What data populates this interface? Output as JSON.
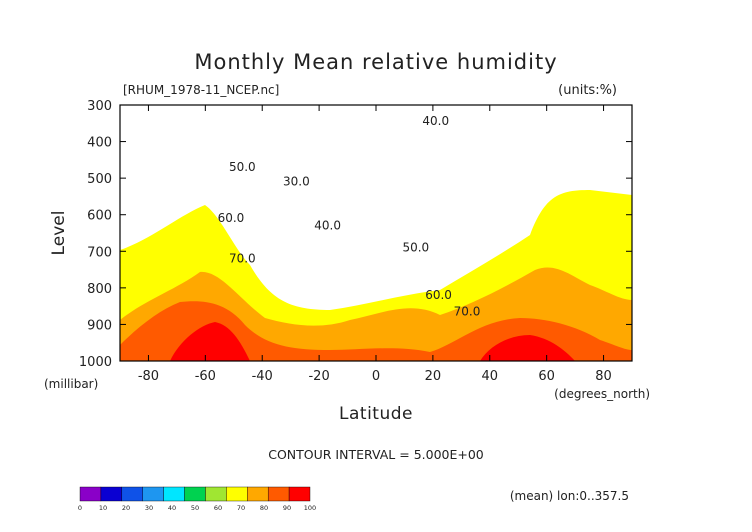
{
  "chart_data": {
    "type": "contour",
    "title": "Monthly Mean relative humidity",
    "file_label": "[RHUM_1978-11_NCEP.nc]",
    "units_label": "(units:%)",
    "xlabel": "Latitude",
    "xunit_label": "(degrees_north)",
    "ylabel": "Level",
    "yunit_label": "(millibar)",
    "x_range": [
      -90,
      90
    ],
    "y_range": [
      1000,
      300
    ],
    "x_ticks": [
      -80,
      -60,
      -40,
      -20,
      0,
      20,
      40,
      60,
      80
    ],
    "y_ticks": [
      300,
      400,
      500,
      600,
      700,
      800,
      900,
      1000
    ],
    "contour_interval_text": "CONTOUR INTERVAL = 5.000E+00",
    "footer_note": "(mean) lon:0..357.5",
    "contour_labels": [
      {
        "text": "30.0",
        "lat": -28,
        "level": 520
      },
      {
        "text": "40.0",
        "lat": -17,
        "level": 640
      },
      {
        "text": "40.0",
        "lat": 21,
        "level": 355
      },
      {
        "text": "50.0",
        "lat": -47,
        "level": 480
      },
      {
        "text": "50.0",
        "lat": 14,
        "level": 700
      },
      {
        "text": "60.0",
        "lat": -51,
        "level": 620
      },
      {
        "text": "60.0",
        "lat": 22,
        "level": 830
      },
      {
        "text": "70.0",
        "lat": -47,
        "level": 730
      },
      {
        "text": "70.0",
        "lat": 32,
        "level": 875
      }
    ],
    "colorbar": {
      "ticks": [
        "0",
        "10",
        "20",
        "30",
        "40",
        "50",
        "60",
        "70",
        "80",
        "90",
        "100"
      ],
      "colors": [
        "#8a00c8",
        "#0a00d2",
        "#0f52e8",
        "#1e96f0",
        "#00e6ff",
        "#00d250",
        "#a0e632",
        "#ffff00",
        "#ffa800",
        "#ff5a00",
        "#ff0000"
      ]
    }
  }
}
